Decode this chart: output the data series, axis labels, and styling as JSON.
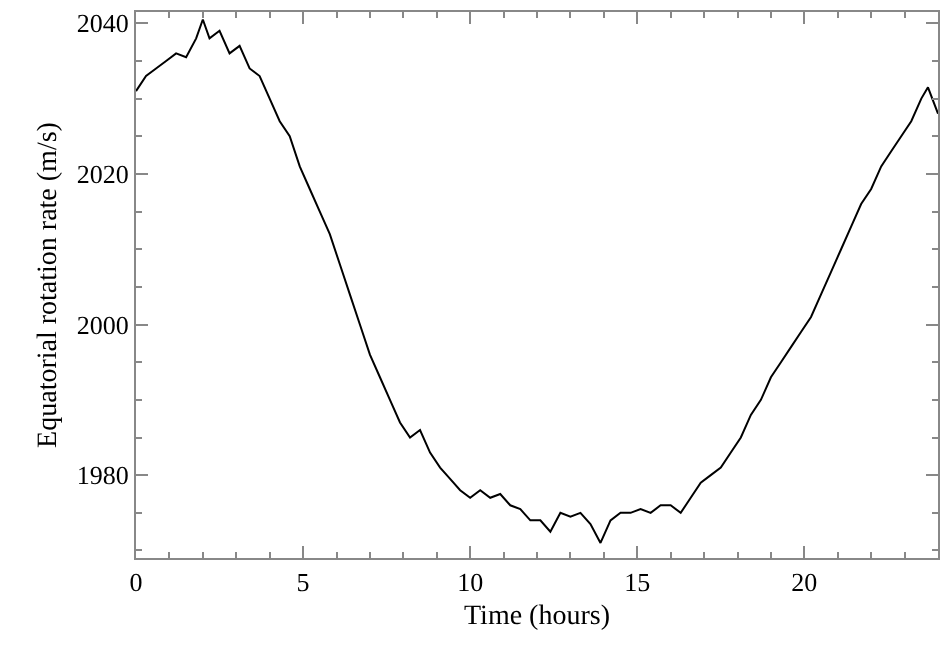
{
  "chart_data": {
    "type": "line",
    "xlabel": "Time (hours)",
    "ylabel": "Equatorial rotation rate (m/s)",
    "x": [
      0,
      0.3,
      0.6,
      0.9,
      1.2,
      1.5,
      1.8,
      2.0,
      2.2,
      2.5,
      2.8,
      3.1,
      3.4,
      3.7,
      4.0,
      4.3,
      4.6,
      4.9,
      5.2,
      5.5,
      5.8,
      6.1,
      6.4,
      6.7,
      7.0,
      7.3,
      7.6,
      7.9,
      8.2,
      8.5,
      8.8,
      9.1,
      9.4,
      9.7,
      10,
      10.3,
      10.6,
      10.9,
      11.2,
      11.5,
      11.8,
      12.1,
      12.4,
      12.7,
      13.0,
      13.3,
      13.6,
      13.9,
      14.2,
      14.5,
      14.8,
      15.1,
      15.4,
      15.7,
      16.0,
      16.3,
      16.6,
      16.9,
      17.2,
      17.5,
      17.8,
      18.1,
      18.4,
      18.7,
      19.0,
      19.3,
      19.6,
      19.9,
      20.2,
      20.5,
      20.8,
      21.1,
      21.4,
      21.7,
      22.0,
      22.3,
      22.6,
      22.9,
      23.2,
      23.5,
      23.7,
      24
    ],
    "series": [
      {
        "color": "#000000",
        "values": [
          2031,
          2033,
          2034,
          2035,
          2036,
          2035.5,
          2038,
          2040.5,
          2038,
          2039,
          2036,
          2037,
          2034,
          2033,
          2030,
          2027,
          2025,
          2021,
          2018,
          2015,
          2012,
          2008,
          2004,
          2000,
          1996,
          1993,
          1990,
          1987,
          1985,
          1986,
          1983,
          1981,
          1979.5,
          1978,
          1977,
          1978,
          1977,
          1977.5,
          1976,
          1975.5,
          1974,
          1974,
          1972.5,
          1975,
          1974.5,
          1975,
          1973.5,
          1971,
          1974,
          1975,
          1975,
          1975.5,
          1975,
          1976,
          1976,
          1975,
          1977,
          1979,
          1980,
          1981,
          1983,
          1985,
          1988,
          1990,
          1993,
          1995,
          1997,
          1999,
          2001,
          2004,
          2007,
          2010,
          2013,
          2016,
          2018,
          2021,
          2023,
          2025,
          2027,
          2030,
          2031.5,
          2028
        ]
      }
    ],
    "xlim": [
      0,
      24
    ],
    "xticks": [
      0,
      5,
      10,
      15,
      20
    ],
    "ylim": [
      1969,
      2041.5
    ],
    "yticks": [
      1980,
      2000,
      2020,
      2040
    ],
    "line_style": "solid",
    "marker": "none"
  }
}
